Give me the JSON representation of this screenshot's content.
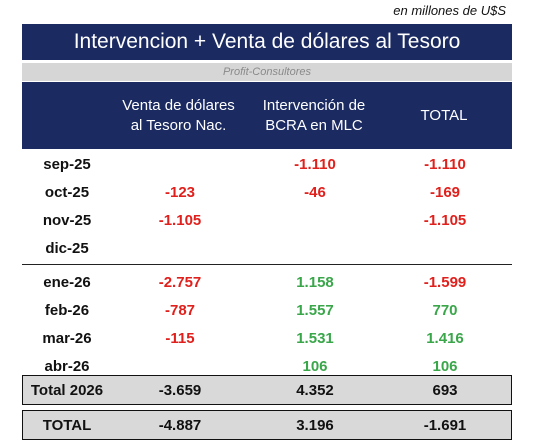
{
  "unit_note": "en millones de U$S",
  "title": "Intervencion + Venta de dólares al Tesoro",
  "source": "Profit-Consultores",
  "colors": {
    "header_bg": "#1b2a61",
    "negative": "#e0201c",
    "positive": "#3aa64a",
    "neutral": "#111111",
    "total_bg": "#d9d9d9"
  },
  "headers": {
    "col1_line1": "Venta de dólares",
    "col1_line2": "al Tesoro Nac.",
    "col2_line1": "Intervención de",
    "col2_line2": "BCRA en MLC",
    "col3": "TOTAL"
  },
  "rows": [
    {
      "label": "sep-25",
      "venta": "",
      "intervencion": "-1.110",
      "total": "-1.110"
    },
    {
      "label": "oct-25",
      "venta": "-123",
      "intervencion": "-46",
      "total": "-169"
    },
    {
      "label": "nov-25",
      "venta": "-1.105",
      "intervencion": "",
      "total": "-1.105"
    },
    {
      "label": "dic-25",
      "venta": "",
      "intervencion": "",
      "total": ""
    },
    {
      "label": "ene-26",
      "venta": "-2.757",
      "intervencion": "1.158",
      "total": "-1.599"
    },
    {
      "label": "feb-26",
      "venta": "-787",
      "intervencion": "1.557",
      "total": "770"
    },
    {
      "label": "mar-26",
      "venta": "-115",
      "intervencion": "1.531",
      "total": "1.416"
    },
    {
      "label": "abr-26",
      "venta": "",
      "intervencion": "106",
      "total": "106"
    }
  ],
  "total_2026": {
    "label": "Total 2026",
    "venta": "-3.659",
    "intervencion": "4.352",
    "total": "693"
  },
  "grand_total": {
    "label": "TOTAL",
    "venta": "-4.887",
    "intervencion": "3.196",
    "total": "-1.691"
  }
}
